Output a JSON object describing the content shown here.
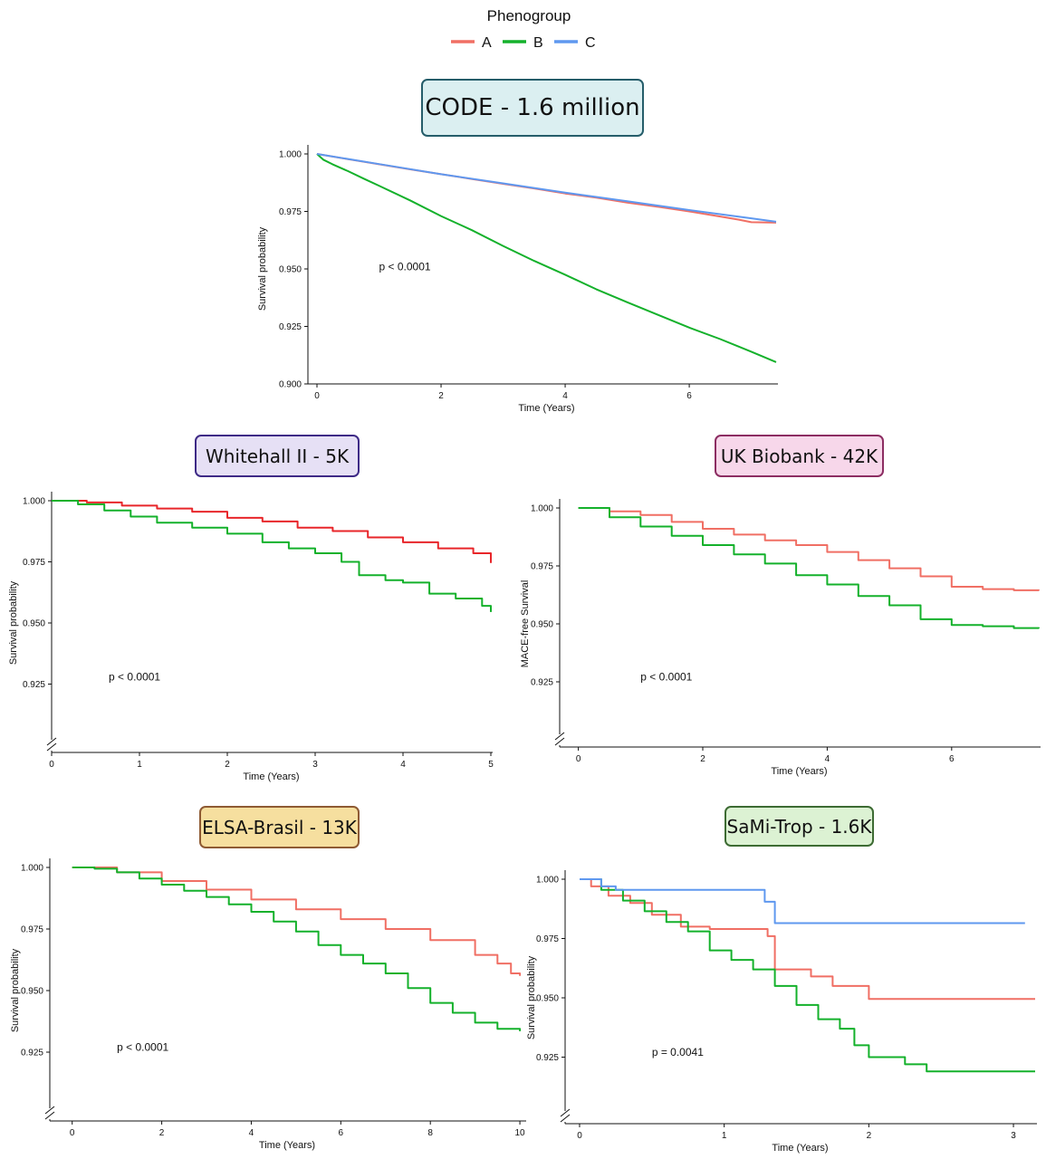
{
  "legend": {
    "title": "Phenogroup",
    "entries": [
      {
        "label": "A",
        "color": "#F06F64"
      },
      {
        "label": "B",
        "color": "#14B12B"
      },
      {
        "label": "C",
        "color": "#5F98EF"
      }
    ]
  },
  "chart_data": [
    {
      "id": "code",
      "type": "line",
      "step": false,
      "title": "CODE - 1.6 million",
      "title_bg": "#DBEFF1",
      "title_border": "#255D6A",
      "xlabel": "Time (Years)",
      "ylabel": "Survival probability",
      "xlim": [
        0,
        7.4
      ],
      "ylim": [
        0.9,
        1.0
      ],
      "xticks": [
        0,
        2,
        4,
        6
      ],
      "xtick_labels": [
        "0",
        "2",
        "4",
        "6"
      ],
      "yticks": [
        0.9,
        0.925,
        0.95,
        0.975,
        1.0
      ],
      "ytick_labels": [
        "0.900",
        "0.925",
        "0.950",
        "0.975",
        "1.000"
      ],
      "axis_break": false,
      "annotation": {
        "text": "p < 0.0001",
        "x": 1.0,
        "y": 0.9495
      },
      "series": [
        {
          "name": "A",
          "color": "#F06F64",
          "x": [
            0,
            0.5,
            1,
            1.5,
            2,
            2.5,
            3,
            3.5,
            4,
            4.5,
            5,
            5.5,
            6,
            6.5,
            6.8,
            7,
            7.4
          ],
          "y": [
            1.0,
            0.9977,
            0.9955,
            0.9933,
            0.9912,
            0.9891,
            0.987,
            0.985,
            0.9828,
            0.981,
            0.9788,
            0.977,
            0.975,
            0.9728,
            0.9714,
            0.9703,
            0.9701
          ]
        },
        {
          "name": "B",
          "color": "#14B12B",
          "x": [
            0,
            0.1,
            0.25,
            0.5,
            0.75,
            1,
            1.5,
            2,
            2.5,
            3,
            3.5,
            4,
            4.5,
            5,
            5.5,
            6,
            6.5,
            7,
            7.4
          ],
          "y": [
            1.0,
            0.9975,
            0.9955,
            0.9925,
            0.9893,
            0.9862,
            0.9798,
            0.973,
            0.9668,
            0.96,
            0.9535,
            0.9475,
            0.9412,
            0.9355,
            0.93,
            0.9245,
            0.9195,
            0.914,
            0.9095
          ]
        },
        {
          "name": "C",
          "color": "#5F98EF",
          "x": [
            0,
            1,
            2,
            3,
            4,
            5,
            6,
            7,
            7.4
          ],
          "y": [
            1.0,
            0.9956,
            0.9912,
            0.9872,
            0.9832,
            0.9794,
            0.9756,
            0.972,
            0.9705
          ]
        }
      ]
    },
    {
      "id": "whitehall",
      "type": "line",
      "step": true,
      "title": "Whitehall II - 5K",
      "title_bg": "#E6E0F5",
      "title_border": "#3E2A86",
      "xlabel": "Time (Years)",
      "ylabel": "Survival probability",
      "xlim": [
        0,
        5
      ],
      "ylim": [
        0.9,
        1.0
      ],
      "xticks": [
        0,
        1,
        2,
        3,
        4,
        5
      ],
      "xtick_labels": [
        "0",
        "1",
        "2",
        "3",
        "4",
        "5"
      ],
      "yticks": [
        0.925,
        0.95,
        0.975,
        1.0
      ],
      "ytick_labels": [
        "0.925",
        "0.950",
        "0.975",
        "1.000"
      ],
      "axis_break": true,
      "annotation": {
        "text": "p < 0.0001",
        "x": 0.65,
        "y": 0.9265
      },
      "series": [
        {
          "name": "A",
          "color": "#E8262A",
          "x": [
            0,
            0.4,
            0.8,
            1.2,
            1.6,
            2.0,
            2.4,
            2.8,
            3.2,
            3.6,
            4.0,
            4.4,
            4.8,
            5.0
          ],
          "y": [
            1.0,
            0.9993,
            0.998,
            0.9968,
            0.9955,
            0.993,
            0.9915,
            0.989,
            0.9876,
            0.985,
            0.983,
            0.9805,
            0.9785,
            0.9745
          ]
        },
        {
          "name": "B",
          "color": "#14B12B",
          "x": [
            0,
            0.3,
            0.6,
            0.9,
            1.2,
            1.6,
            2.0,
            2.4,
            2.7,
            3.0,
            3.3,
            3.5,
            3.8,
            4.0,
            4.3,
            4.6,
            4.9,
            5.0
          ],
          "y": [
            1.0,
            0.9985,
            0.996,
            0.9935,
            0.991,
            0.989,
            0.9865,
            0.983,
            0.9805,
            0.9785,
            0.975,
            0.9695,
            0.9675,
            0.9665,
            0.962,
            0.96,
            0.957,
            0.9545
          ]
        }
      ]
    },
    {
      "id": "ukbiobank",
      "type": "line",
      "step": true,
      "title": "UK Biobank - 42K",
      "title_bg": "#F7D7EA",
      "title_border": "#8C2D62",
      "xlabel": "Time (Years)",
      "ylabel": "MACE-free Survival",
      "xlim": [
        -0.3,
        7.4
      ],
      "ylim": [
        0.9,
        1.0
      ],
      "xticks": [
        0,
        2,
        4,
        6
      ],
      "xtick_labels": [
        "0",
        "2",
        "4",
        "6"
      ],
      "yticks": [
        0.925,
        0.95,
        0.975,
        1.0
      ],
      "ytick_labels": [
        "0.925",
        "0.950",
        "0.975",
        "1.000"
      ],
      "axis_break": true,
      "annotation": {
        "text": "p < 0.0001",
        "x": 1.0,
        "y": 0.9255
      },
      "series": [
        {
          "name": "A",
          "color": "#F06F64",
          "x": [
            0,
            0.5,
            1,
            1.5,
            2,
            2.5,
            3,
            3.5,
            4,
            4.5,
            5,
            5.5,
            6,
            6.5,
            7,
            7.4
          ],
          "y": [
            1.0,
            0.9985,
            0.997,
            0.994,
            0.991,
            0.9885,
            0.986,
            0.984,
            0.981,
            0.9775,
            0.974,
            0.9705,
            0.966,
            0.965,
            0.9645,
            0.9643
          ]
        },
        {
          "name": "B",
          "color": "#14B12B",
          "x": [
            0,
            0.5,
            1,
            1.5,
            2,
            2.5,
            3,
            3.5,
            4,
            4.5,
            5,
            5.5,
            6,
            6.5,
            7,
            7.4
          ],
          "y": [
            1.0,
            0.996,
            0.992,
            0.988,
            0.984,
            0.98,
            0.976,
            0.971,
            0.967,
            0.962,
            0.958,
            0.952,
            0.9495,
            0.949,
            0.9482,
            0.948
          ]
        }
      ]
    },
    {
      "id": "elsa",
      "type": "line",
      "step": true,
      "title": "ELSA-Brasil - 13K",
      "title_bg": "#F6DF9F",
      "title_border": "#8E5A33",
      "xlabel": "Time (Years)",
      "ylabel": "Survival probability",
      "xlim": [
        -0.5,
        10.1
      ],
      "ylim": [
        0.9,
        1.0
      ],
      "xticks": [
        0,
        2,
        4,
        6,
        8,
        10
      ],
      "xtick_labels": [
        "0",
        "2",
        "4",
        "6",
        "8",
        "10"
      ],
      "yticks": [
        0.925,
        0.95,
        0.975,
        1.0
      ],
      "ytick_labels": [
        "0.925",
        "0.950",
        "0.975",
        "1.000"
      ],
      "axis_break": true,
      "annotation": {
        "text": "p < 0.0001",
        "x": 1.0,
        "y": 0.9255
      },
      "series": [
        {
          "name": "A",
          "color": "#F06F64",
          "x": [
            0,
            1,
            2,
            3,
            4,
            5,
            6,
            7,
            8,
            9,
            9.5,
            9.8,
            10
          ],
          "y": [
            1.0,
            0.998,
            0.9945,
            0.991,
            0.987,
            0.983,
            0.979,
            0.975,
            0.9705,
            0.9645,
            0.961,
            0.957,
            0.956
          ]
        },
        {
          "name": "B",
          "color": "#14B12B",
          "x": [
            0,
            0.5,
            1,
            1.5,
            2,
            2.5,
            3,
            3.5,
            4,
            4.5,
            5,
            5.5,
            6,
            6.5,
            7,
            7.5,
            8,
            8.5,
            9,
            9.5,
            10
          ],
          "y": [
            1.0,
            0.9995,
            0.998,
            0.9955,
            0.993,
            0.9905,
            0.988,
            0.985,
            0.982,
            0.978,
            0.974,
            0.9685,
            0.9645,
            0.961,
            0.957,
            0.951,
            0.945,
            0.941,
            0.937,
            0.9345,
            0.9335
          ]
        }
      ]
    },
    {
      "id": "samitrop",
      "type": "line",
      "step": true,
      "title": "SaMi-Trop - 1.6K",
      "title_bg": "#DCF2D3",
      "title_border": "#3D6B33",
      "xlabel": "Time (Years)",
      "ylabel": "Survival probability",
      "xlim": [
        -0.1,
        3.15
      ],
      "ylim": [
        0.9,
        1.0
      ],
      "xticks": [
        0,
        1,
        2,
        3
      ],
      "xtick_labels": [
        "0",
        "1",
        "2",
        "3"
      ],
      "yticks": [
        0.925,
        0.95,
        0.975,
        1.0
      ],
      "ytick_labels": [
        "0.925",
        "0.950",
        "0.975",
        "1.000"
      ],
      "axis_break": true,
      "annotation": {
        "text": "p = 0.0041",
        "x": 0.5,
        "y": 0.9255
      },
      "series": [
        {
          "name": "A",
          "color": "#F06F64",
          "x": [
            0,
            0.08,
            0.2,
            0.35,
            0.5,
            0.7,
            0.9,
            1.3,
            1.35,
            1.6,
            1.75,
            2.0,
            3.15
          ],
          "y": [
            1.0,
            0.997,
            0.993,
            0.99,
            0.985,
            0.98,
            0.979,
            0.976,
            0.962,
            0.959,
            0.955,
            0.9495,
            0.9495
          ]
        },
        {
          "name": "B",
          "color": "#14B12B",
          "x": [
            0,
            0.15,
            0.3,
            0.45,
            0.6,
            0.75,
            0.9,
            1.05,
            1.2,
            1.35,
            1.5,
            1.65,
            1.8,
            1.9,
            2.0,
            2.25,
            2.4,
            3.15
          ],
          "y": [
            1.0,
            0.9955,
            0.991,
            0.9865,
            0.982,
            0.978,
            0.97,
            0.966,
            0.962,
            0.955,
            0.947,
            0.941,
            0.937,
            0.93,
            0.925,
            0.922,
            0.919,
            0.919
          ]
        },
        {
          "name": "C",
          "color": "#5F98EF",
          "x": [
            0,
            0.15,
            0.25,
            1.15,
            1.28,
            1.35,
            3.08
          ],
          "y": [
            1.0,
            0.997,
            0.9955,
            0.9955,
            0.9905,
            0.9815,
            0.9815
          ]
        }
      ]
    }
  ]
}
